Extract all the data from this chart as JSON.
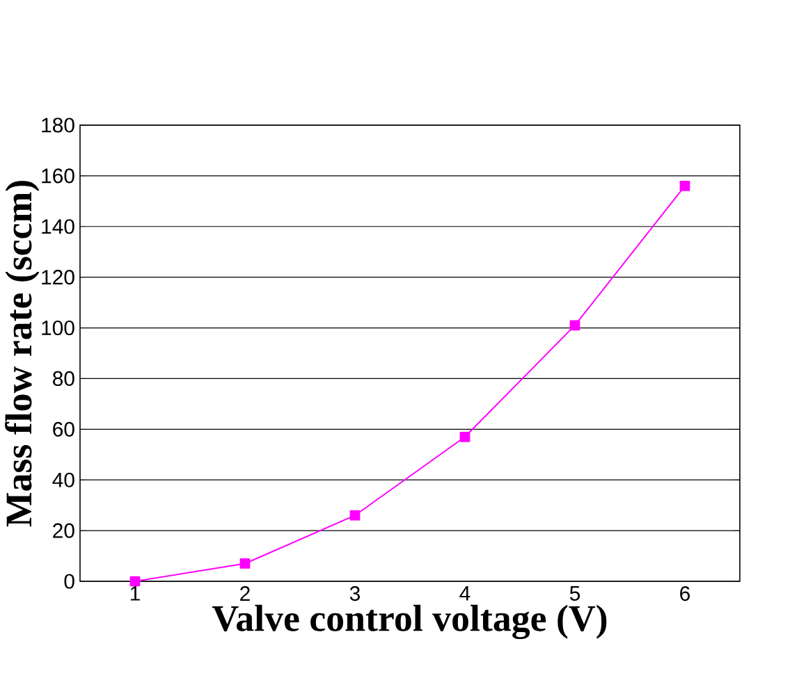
{
  "chart_data": {
    "type": "line",
    "xlabel": "Valve control voltage (V)",
    "ylabel": "Mass flow rate (sccm)",
    "categories": [
      "1",
      "2",
      "3",
      "4",
      "5",
      "6"
    ],
    "series": [
      {
        "color": "#ff00ff",
        "values": [
          0,
          7,
          26,
          57,
          101,
          156
        ]
      }
    ],
    "ylim": [
      0,
      180
    ],
    "yticks": [
      0,
      20,
      40,
      60,
      80,
      100,
      120,
      140,
      160,
      180
    ],
    "grid": "y",
    "marker": "square",
    "line_style": "solid"
  }
}
